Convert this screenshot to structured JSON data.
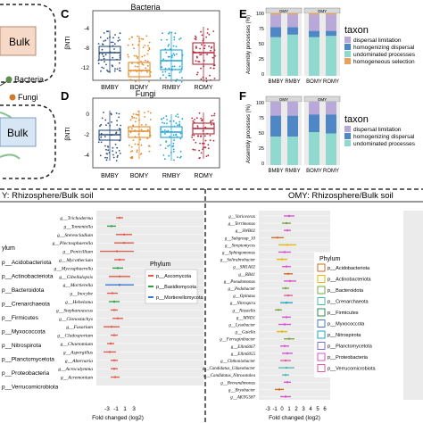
{
  "left_strip": {
    "bulk_top": "Bulk",
    "bulk_bottom": "Bulk",
    "bacteria": "Bacteria",
    "fungi": "Fungi"
  },
  "panel_letters": {
    "C": "C",
    "D": "D",
    "E": "E",
    "F": "F"
  },
  "panel_C": {
    "title": "Bacteria",
    "ylabel": "βNTI",
    "yticks": [
      "-4",
      "-8",
      "-12"
    ],
    "categories": [
      "BMBY",
      "BOMY",
      "RMBY",
      "ROMY"
    ],
    "colors": [
      "#2c4e7a",
      "#e38a28",
      "#1fa3d6",
      "#b5273a"
    ]
  },
  "panel_D": {
    "title": "Fungi",
    "ylabel": "βNTI",
    "yticks": [
      "0",
      "-2",
      "-4"
    ],
    "categories": [
      "BMBY",
      "BOMY",
      "RMBY",
      "ROMY"
    ],
    "colors": [
      "#2c4e7a",
      "#e38a28",
      "#1fa3d6",
      "#b5273a"
    ]
  },
  "panel_E": {
    "ylabel": "Assembly processes (%)",
    "yticks": [
      "100",
      "75",
      "50",
      "25",
      "0"
    ],
    "facet_labels": [
      "OMY",
      "OMY"
    ],
    "categories": [
      "BMBY",
      "RMBY",
      "BOMY",
      "ROMY"
    ],
    "legend_title": "taxon",
    "legend": [
      "dispersal limitation",
      "homogenizing dispersal",
      "undominated processes",
      "homogeneous selection"
    ],
    "legend_colors": [
      "#b9a9d8",
      "#4f86c6",
      "#8fd9cf",
      "#e9a25a"
    ]
  },
  "panel_F": {
    "ylabel": "Assembly processes (%)",
    "yticks": [
      "100",
      "75",
      "50",
      "25",
      "0"
    ],
    "facet_labels": [
      "OMY",
      "OMY"
    ],
    "categories": [
      "BMBY",
      "RMBY",
      "BOMY",
      "ROMY"
    ],
    "legend_title": "taxon",
    "legend": [
      "dispersal limitation",
      "homogenizing dispersal",
      "undominated processes"
    ],
    "legend_colors": [
      "#b9a9d8",
      "#4f86c6",
      "#8fd9cf"
    ]
  },
  "bottom_left": {
    "title": "Y: Rhizosphere/Bulk soil",
    "phylum_label": "ylum",
    "phyla": [
      "Acidobacteriota",
      "Actinobacteriota",
      "Bacteroidota",
      "Crenarchaeota",
      "Firmicutes",
      "Myxococcota",
      "Nitrospirota",
      "Planctomycetota",
      "Proteobacteria",
      "Verrucomicrobiota"
    ],
    "fungi_legend_title": "Phylum",
    "fungi_legend": [
      "p__Ascomycota",
      "p__Basidiomycota",
      "p__Mortierellomycota"
    ],
    "fungi_legend_colors": [
      "#e35a4a",
      "#2e9e46",
      "#3a7ad6"
    ],
    "genera": [
      "g__Trichoderma",
      "g__Tomentella",
      "g__Stereocladium",
      "g__Plectosphaerella",
      "g__Penicillium",
      "g__Mycothecium",
      "g__Mycosphaerella",
      "g__Gibellulopsis",
      "g__Mortierella",
      "g__Inocybe",
      "g__Hebeloma",
      "g__Stephanoascus",
      "g__Clonostachys",
      "g__Fusarium",
      "g__Cladosporium",
      "g__Chaetomium",
      "g__Aspergillus",
      "g__Alternaria",
      "g__Acrocalymma",
      "g__Acremonium"
    ],
    "xticks": [
      "-3",
      "-1",
      "1",
      "3"
    ],
    "xlabel": "Fold changed (log2)"
  },
  "bottom_right": {
    "title": "OMY: Rhizosphere/Bulk soil",
    "phylum_label": "Phylum",
    "phyla": [
      "p__Acidobacteriota",
      "p__Actinobacteriota",
      "p__Bacteroidota",
      "p__Crenarchaeota",
      "p__Firmicutes",
      "p__Myxococcota",
      "p__Nitrospirota",
      "p__Planctomycetota",
      "p__Proteobacteria",
      "p__Verrucomicrobiota"
    ],
    "phyla_colors": [
      "#d2691e",
      "#e6b800",
      "#7aa640",
      "#4ab8b0",
      "#2e8b57",
      "#4a78c8",
      "#20a0c0",
      "#8a6cc8",
      "#d94fd0",
      "#e05a9a"
    ],
    "genera": [
      "g__Variovorax",
      "g__Terrimonas",
      "g__SWB02",
      "g__Subgroup_10",
      "g__Streptomyces",
      "g__Sphingomonas",
      "g__Solirubrobacter",
      "g__SM1A02",
      "g__RB41",
      "g__Pseudomonas",
      "g__Pedobacter",
      "g__Opitutus",
      "g__Nitrospira",
      "g__Niastella",
      "g__MND1",
      "g__Lysobacter",
      "g__Gaiella",
      "g__Ferruginibacter",
      "g__Ellin6067",
      "g__Ellin6055",
      "g__Chthoniobacter",
      "g__Candidatus_Udaeobacter",
      "g__Candidatus_Nitrosotalea",
      "g__Brevundimonas",
      "g__Bryobacter",
      "g__AKYG587"
    ],
    "xticks": [
      "-3",
      "-1",
      "0",
      "1",
      "2",
      "3",
      "4",
      "5",
      "6"
    ],
    "xlabel": "Fold changed (log2)"
  }
}
